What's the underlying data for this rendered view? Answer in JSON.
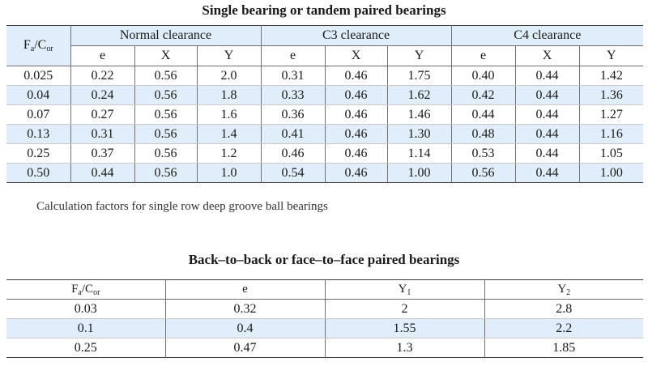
{
  "table1": {
    "title": "Single bearing or tandem paired bearings",
    "fa_label": "F",
    "fa_sub": "a",
    "fa_sep": "/C",
    "fa_sub2": "or",
    "groups": [
      "Normal clearance",
      "C3 clearance",
      "C4 clearance"
    ],
    "subheaders": [
      "e",
      "X",
      "Y",
      "e",
      "X",
      "Y",
      "e",
      "X",
      "Y"
    ],
    "rows": [
      [
        "0.025",
        "0.22",
        "0.56",
        "2.0",
        "0.31",
        "0.46",
        "1.75",
        "0.40",
        "0.44",
        "1.42"
      ],
      [
        "0.04",
        "0.24",
        "0.56",
        "1.8",
        "0.33",
        "0.46",
        "1.62",
        "0.42",
        "0.44",
        "1.36"
      ],
      [
        "0.07",
        "0.27",
        "0.56",
        "1.6",
        "0.36",
        "0.46",
        "1.46",
        "0.44",
        "0.44",
        "1.27"
      ],
      [
        "0.13",
        "0.31",
        "0.56",
        "1.4",
        "0.41",
        "0.46",
        "1.30",
        "0.48",
        "0.44",
        "1.16"
      ],
      [
        "0.25",
        "0.37",
        "0.56",
        "1.2",
        "0.46",
        "0.46",
        "1.14",
        "0.53",
        "0.44",
        "1.05"
      ],
      [
        "0.50",
        "0.44",
        "0.56",
        "1.0",
        "0.54",
        "0.46",
        "1.00",
        "0.56",
        "0.44",
        "1.00"
      ]
    ],
    "caption": "Calculation factors for single row deep groove ball bearings"
  },
  "table2": {
    "title": "Back–to–back or face–to–face paired bearings",
    "headers": {
      "fa_label": "F",
      "fa_sub": "a",
      "fa_sep": "/C",
      "fa_sub2": "or",
      "e": "e",
      "y1": "Y",
      "y1_sub": "1",
      "y2": "Y",
      "y2_sub": "2"
    },
    "rows": [
      [
        "0.03",
        "0.32",
        "2",
        "2.8"
      ],
      [
        "0.1",
        "0.4",
        "1.55",
        "2.2"
      ],
      [
        "0.25",
        "0.47",
        "1.3",
        "1.85"
      ]
    ]
  },
  "colors": {
    "row_highlight": "#dfeefa",
    "rules": "#3d3d3d"
  }
}
